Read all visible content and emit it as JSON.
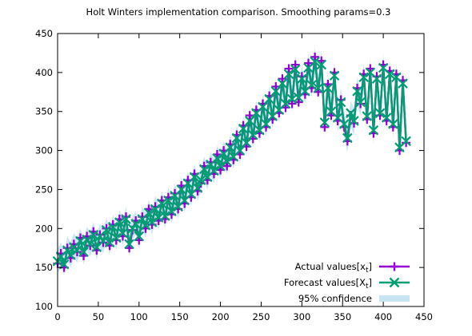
{
  "chart_data": {
    "type": "line",
    "title": "Holt Winters implementation comparison. Smoothing params=0.3",
    "xlabel": "",
    "ylabel": "",
    "xlim": [
      0,
      450
    ],
    "ylim": [
      100,
      450
    ],
    "x_ticks": [
      0,
      50,
      100,
      150,
      200,
      250,
      300,
      350,
      400,
      450
    ],
    "y_ticks": [
      100,
      150,
      200,
      250,
      300,
      350,
      400,
      450
    ],
    "grid": false,
    "legend_position": "bottom-right",
    "legend": [
      {
        "label": "Actual values[x",
        "sub": "t",
        "suffix": "]",
        "color": "#9400d3",
        "style": "line-plus"
      },
      {
        "label": "Forecast values[X",
        "sub": "t",
        "suffix": "]",
        "color": "#009e73",
        "style": "line-cross"
      },
      {
        "label": "95% confidence",
        "color": "#c8e3f2",
        "style": "band"
      }
    ],
    "series": [
      {
        "name": "Actual values[xt]",
        "color": "#9400d3",
        "x_start": 0,
        "x_step": 4,
        "values": [
          155,
          168,
          150,
          175,
          162,
          180,
          170,
          188,
          165,
          190,
          178,
          196,
          172,
          192,
          182,
          200,
          178,
          205,
          185,
          212,
          190,
          215,
          175,
          198,
          210,
          185,
          215,
          200,
          225,
          205,
          228,
          210,
          236,
          212,
          240,
          218,
          245,
          225,
          255,
          232,
          262,
          240,
          270,
          248,
          258,
          280,
          262,
          285,
          270,
          295,
          275,
          300,
          280,
          308,
          288,
          320,
          295,
          332,
          305,
          345,
          315,
          352,
          322,
          360,
          330,
          370,
          340,
          382,
          348,
          392,
          355,
          405,
          360,
          410,
          362,
          395,
          372,
          412,
          380,
          420,
          375,
          415,
          330,
          385,
          345,
          400,
          338,
          365,
          330,
          312,
          345,
          335,
          380,
          360,
          398,
          340,
          405,
          322,
          395,
          345,
          410,
          338,
          402,
          330,
          398,
          300,
          390,
          310
        ]
      },
      {
        "name": "Forecast values[Xt]",
        "color": "#009e73",
        "x_start": 0,
        "x_step": 4,
        "values": [
          158,
          164,
          154,
          172,
          166,
          176,
          172,
          184,
          170,
          186,
          180,
          192,
          176,
          190,
          184,
          198,
          182,
          202,
          188,
          208,
          194,
          212,
          180,
          200,
          206,
          190,
          212,
          204,
          220,
          208,
          225,
          214,
          232,
          216,
          236,
          222,
          242,
          228,
          250,
          236,
          258,
          244,
          266,
          252,
          262,
          276,
          266,
          282,
          274,
          290,
          280,
          296,
          286,
          304,
          292,
          316,
          300,
          328,
          310,
          338,
          320,
          348,
          326,
          356,
          334,
          366,
          344,
          376,
          352,
          386,
          360,
          398,
          366,
          404,
          368,
          392,
          376,
          406,
          384,
          414,
          380,
          410,
          336,
          380,
          350,
          396,
          342,
          362,
          334,
          316,
          348,
          338,
          376,
          362,
          394,
          344,
          400,
          326,
          392,
          348,
          406,
          342,
          398,
          334,
          394,
          304,
          386,
          312
        ]
      },
      {
        "name": "95% confidence",
        "color": "#c8e3f2",
        "x_start": 0,
        "x_step": 4,
        "lower": [
          142,
          150,
          140,
          158,
          150,
          162,
          156,
          170,
          154,
          172,
          164,
          178,
          160,
          176,
          168,
          184,
          166,
          188,
          172,
          194,
          178,
          198,
          164,
          186,
          192,
          174,
          198,
          188,
          206,
          192,
          210,
          198,
          218,
          200,
          222,
          206,
          228,
          212,
          236,
          220,
          244,
          228,
          252,
          236,
          246,
          262,
          250,
          268,
          258,
          276,
          264,
          282,
          270,
          290,
          276,
          300,
          284,
          312,
          294,
          322,
          304,
          332,
          310,
          340,
          318,
          350,
          328,
          360,
          336,
          370,
          344,
          380,
          350,
          386,
          352,
          376,
          360,
          390,
          368,
          398,
          364,
          394,
          318,
          362,
          332,
          378,
          324,
          344,
          316,
          298,
          330,
          320,
          358,
          344,
          376,
          326,
          382,
          308,
          374,
          330,
          388,
          324,
          380,
          316,
          376,
          286,
          368,
          294
        ],
        "upper": [
          174,
          182,
          170,
          190,
          182,
          194,
          188,
          200,
          186,
          202,
          196,
          208,
          192,
          206,
          200,
          214,
          198,
          218,
          204,
          224,
          210,
          228,
          196,
          216,
          222,
          206,
          228,
          220,
          236,
          224,
          242,
          230,
          248,
          232,
          252,
          238,
          258,
          244,
          266,
          252,
          274,
          260,
          282,
          268,
          278,
          292,
          282,
          298,
          290,
          306,
          296,
          312,
          302,
          320,
          308,
          332,
          316,
          344,
          326,
          354,
          336,
          364,
          342,
          372,
          350,
          382,
          360,
          392,
          368,
          402,
          376,
          414,
          382,
          422,
          384,
          410,
          392,
          424,
          400,
          432,
          396,
          428,
          352,
          398,
          366,
          414,
          358,
          380,
          350,
          332,
          364,
          354,
          394,
          378,
          412,
          360,
          418,
          342,
          410,
          364,
          424,
          358,
          416,
          350,
          412,
          320,
          404,
          328
        ]
      }
    ]
  }
}
